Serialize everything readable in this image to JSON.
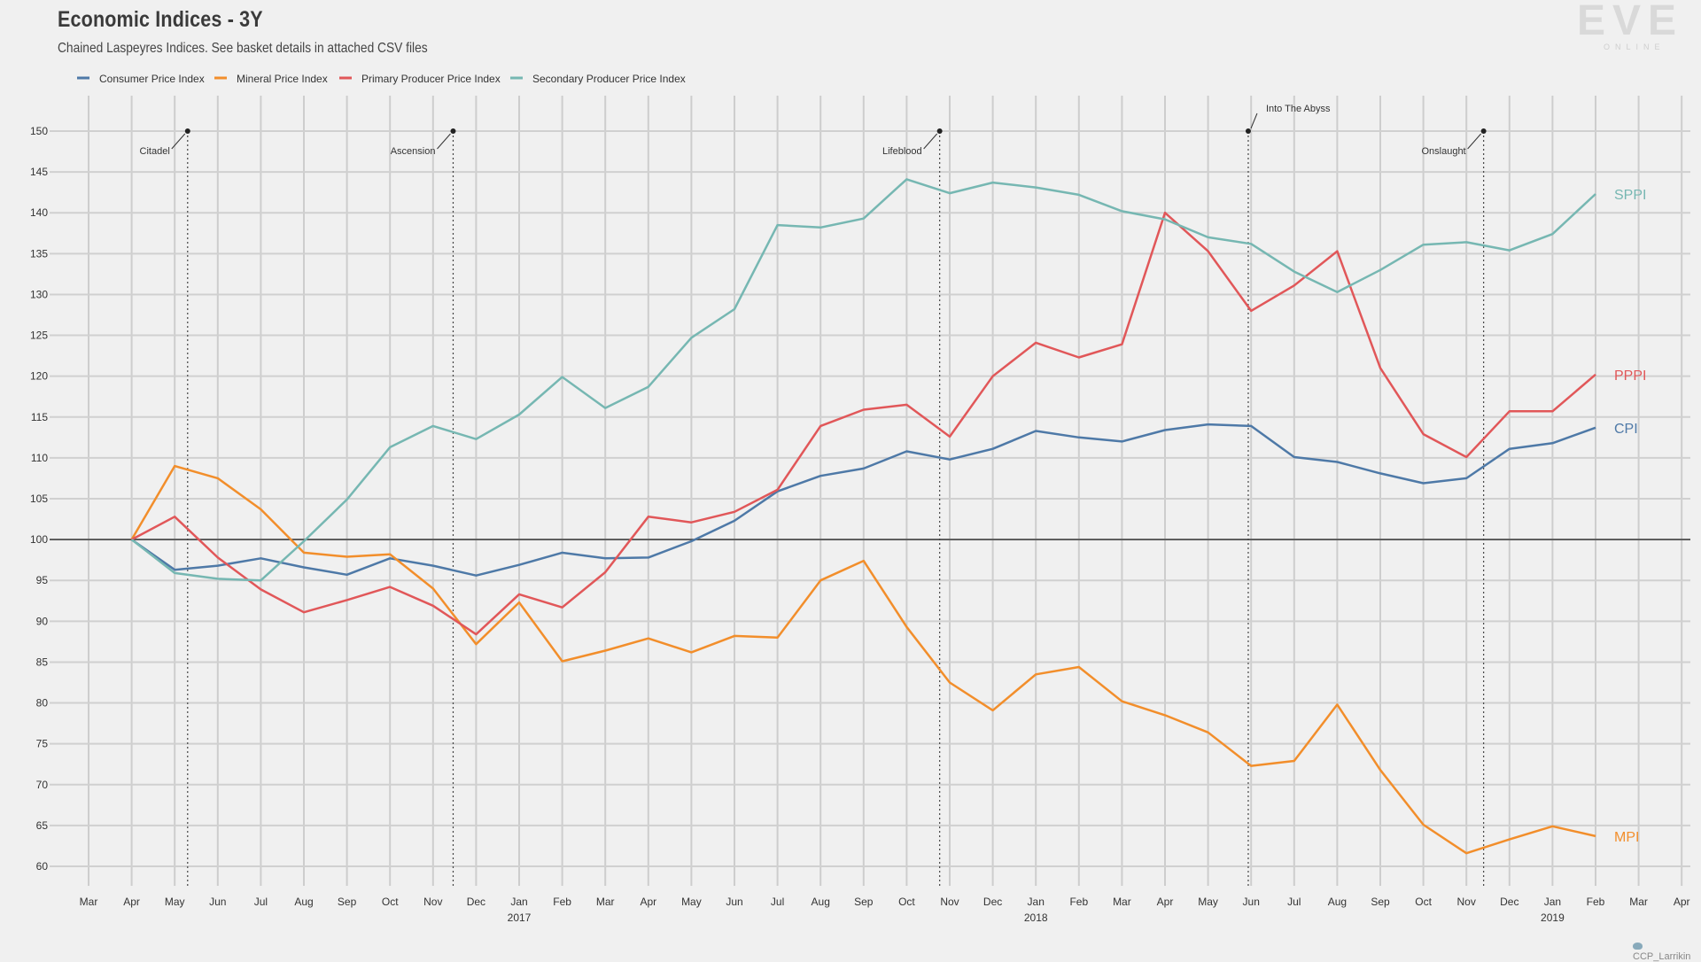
{
  "header": {
    "title": "Economic Indices - 3Y",
    "subtitle": "Chained Laspeyres Indices. See basket details in attached CSV files"
  },
  "logo": {
    "main": "EVE",
    "sub": "ONLINE"
  },
  "credit": {
    "handle": "CCP_Larrikin"
  },
  "chart_data": {
    "type": "line",
    "title": "Economic Indices - 3Y",
    "subtitle": "Chained Laspeyres Indices. See basket details in attached CSV files",
    "xlabel": "",
    "ylabel": "",
    "ylim": [
      60,
      150
    ],
    "yticks": [
      60,
      65,
      70,
      75,
      80,
      85,
      90,
      95,
      100,
      105,
      110,
      115,
      120,
      125,
      130,
      135,
      140,
      145,
      150
    ],
    "reference_line": 100,
    "grid": true,
    "legend_position": "top-left",
    "x_ticks": [
      {
        "m": "Mar",
        "y": ""
      },
      {
        "m": "Apr",
        "y": ""
      },
      {
        "m": "May",
        "y": ""
      },
      {
        "m": "Jun",
        "y": ""
      },
      {
        "m": "Jul",
        "y": ""
      },
      {
        "m": "Aug",
        "y": ""
      },
      {
        "m": "Sep",
        "y": ""
      },
      {
        "m": "Oct",
        "y": ""
      },
      {
        "m": "Nov",
        "y": ""
      },
      {
        "m": "Dec",
        "y": ""
      },
      {
        "m": "Jan",
        "y": "2017"
      },
      {
        "m": "Feb",
        "y": ""
      },
      {
        "m": "Mar",
        "y": ""
      },
      {
        "m": "Apr",
        "y": ""
      },
      {
        "m": "May",
        "y": ""
      },
      {
        "m": "Jun",
        "y": ""
      },
      {
        "m": "Jul",
        "y": ""
      },
      {
        "m": "Aug",
        "y": ""
      },
      {
        "m": "Sep",
        "y": ""
      },
      {
        "m": "Oct",
        "y": ""
      },
      {
        "m": "Nov",
        "y": ""
      },
      {
        "m": "Dec",
        "y": ""
      },
      {
        "m": "Jan",
        "y": "2018"
      },
      {
        "m": "Feb",
        "y": ""
      },
      {
        "m": "Mar",
        "y": ""
      },
      {
        "m": "Apr",
        "y": ""
      },
      {
        "m": "May",
        "y": ""
      },
      {
        "m": "Jun",
        "y": ""
      },
      {
        "m": "Jul",
        "y": ""
      },
      {
        "m": "Aug",
        "y": ""
      },
      {
        "m": "Sep",
        "y": ""
      },
      {
        "m": "Oct",
        "y": ""
      },
      {
        "m": "Nov",
        "y": ""
      },
      {
        "m": "Dec",
        "y": ""
      },
      {
        "m": "Jan",
        "y": "2019"
      },
      {
        "m": "Feb",
        "y": ""
      },
      {
        "m": "Mar",
        "y": ""
      },
      {
        "m": "Apr",
        "y": ""
      }
    ],
    "x": [
      "2016-04",
      "2016-05",
      "2016-06",
      "2016-07",
      "2016-08",
      "2016-09",
      "2016-10",
      "2016-11",
      "2016-12",
      "2017-01",
      "2017-02",
      "2017-03",
      "2017-04",
      "2017-05",
      "2017-06",
      "2017-07",
      "2017-08",
      "2017-09",
      "2017-10",
      "2017-11",
      "2017-12",
      "2018-01",
      "2018-02",
      "2018-03",
      "2018-04",
      "2018-05",
      "2018-06",
      "2018-07",
      "2018-08",
      "2018-09",
      "2018-10",
      "2018-11",
      "2018-12",
      "2019-01",
      "2019-02"
    ],
    "series": [
      {
        "name": "Consumer Price Index",
        "end_label": "CPI",
        "color": "#4e79a7",
        "values": [
          100,
          96.3,
          96.8,
          97.7,
          96.6,
          95.7,
          97.7,
          96.8,
          95.6,
          96.9,
          98.4,
          97.7,
          97.8,
          99.8,
          102.3,
          105.9,
          107.8,
          108.7,
          110.8,
          109.8,
          111.1,
          113.3,
          112.5,
          112.0,
          113.4,
          114.1,
          113.9,
          110.1,
          109.5,
          108.1,
          106.9,
          107.5,
          111.1,
          111.8,
          113.7
        ]
      },
      {
        "name": "Mineral Price Index",
        "end_label": "MPI",
        "color": "#f28e2b",
        "values": [
          100,
          109.0,
          107.5,
          103.7,
          98.4,
          97.9,
          98.2,
          94.0,
          87.2,
          92.3,
          85.1,
          86.4,
          87.9,
          86.2,
          88.2,
          88.0,
          95.0,
          97.4,
          89.3,
          82.5,
          79.1,
          83.5,
          84.4,
          80.2,
          78.5,
          76.4,
          72.3,
          72.9,
          79.8,
          71.8,
          65.1,
          61.6,
          63.3,
          64.9,
          63.7
        ]
      },
      {
        "name": "Primary Producer Price Index",
        "end_label": "PPPI",
        "color": "#e15759",
        "values": [
          100,
          102.8,
          97.8,
          93.9,
          91.1,
          92.6,
          94.2,
          91.9,
          88.4,
          93.3,
          91.7,
          96.0,
          102.8,
          102.1,
          103.4,
          106.1,
          113.9,
          115.9,
          116.5,
          112.6,
          120.0,
          124.1,
          122.3,
          123.9,
          140.0,
          135.3,
          128.0,
          131.1,
          135.3,
          121.0,
          112.9,
          110.1,
          115.7,
          115.7,
          120.2
        ]
      },
      {
        "name": "Secondary Producer Price Index",
        "end_label": "SPPI",
        "color": "#76b7b2",
        "values": [
          100,
          95.9,
          95.2,
          95.0,
          99.8,
          104.9,
          111.3,
          113.9,
          112.3,
          115.3,
          119.9,
          116.1,
          118.7,
          124.7,
          128.2,
          138.5,
          138.2,
          139.3,
          144.1,
          142.4,
          143.7,
          143.1,
          142.2,
          140.2,
          139.2,
          137.0,
          136.2,
          132.8,
          130.3,
          133.0,
          136.1,
          136.4,
          135.4,
          137.4,
          142.3
        ]
      }
    ],
    "annotations": [
      {
        "label": "Citadel",
        "date": "2016-05-10",
        "side": "left"
      },
      {
        "label": "Ascension",
        "date": "2016-11-15",
        "side": "left"
      },
      {
        "label": "Lifeblood",
        "date": "2017-10-24",
        "side": "left"
      },
      {
        "label": "Into The Abyss",
        "date": "2018-05-29",
        "side": "right"
      },
      {
        "label": "Onslaught",
        "date": "2018-11-13",
        "side": "left"
      }
    ]
  }
}
